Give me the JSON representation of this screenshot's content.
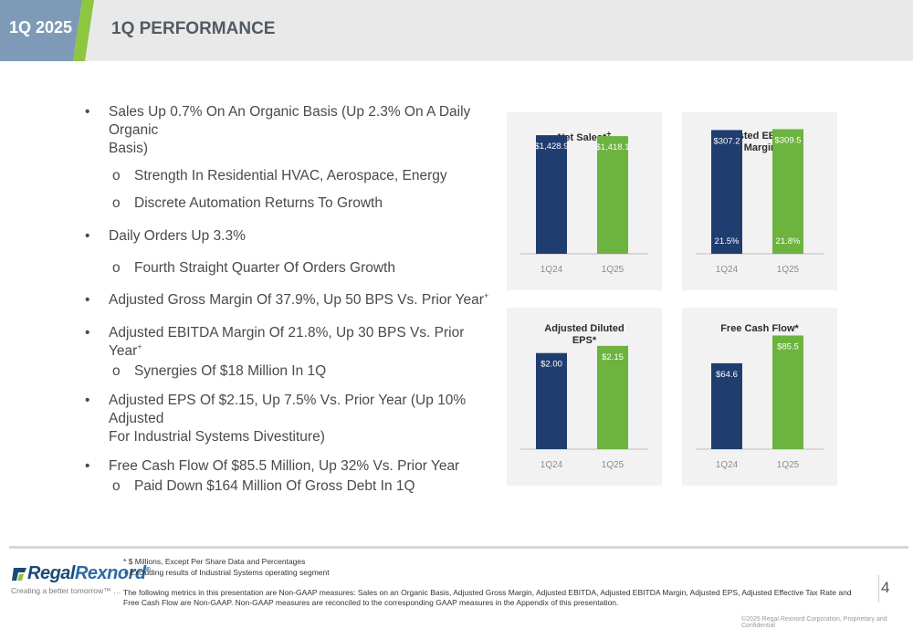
{
  "header": {
    "quarter_tab": "1Q 2025",
    "title": "1Q PERFORMANCE"
  },
  "bullets": [
    {
      "level": 1,
      "text": "Sales Up 0.7% On An Organic Basis (Up 2.3% On A Daily Organic",
      "text2": "Basis)"
    },
    {
      "level": 2,
      "text": "Strength In Residential HVAC, Aerospace, Energy"
    },
    {
      "level": 2,
      "text": "Discrete Automation Returns To Growth"
    },
    {
      "level": 1,
      "text": "Daily Orders Up 3.3%"
    },
    {
      "level": 2,
      "text": "Fourth Straight Quarter Of Orders Growth"
    },
    {
      "level": 1,
      "text": "Adjusted Gross Margin Of 37.9%, Up 50 BPS Vs. Prior Year",
      "sup": "+"
    },
    {
      "level": 1,
      "text": "Adjusted EBITDA Margin Of 21.8%, Up 30 BPS Vs. Prior Year",
      "sup": "+"
    },
    {
      "level": 2,
      "text": "Synergies Of $18 Million In 1Q"
    },
    {
      "level": 1,
      "text": "Adjusted EPS Of $2.15, Up 7.5% Vs. Prior Year (Up 10% Adjusted",
      "text2": "For Industrial Systems Divestiture)"
    },
    {
      "level": 1,
      "text": "Free Cash Flow Of $85.5 Million, Up 32% Vs. Prior Year"
    },
    {
      "level": 2,
      "text": "Paid Down $164 Million Of Gross Debt In 1Q"
    }
  ],
  "bullet_markers": {
    "level1": "•",
    "level2": "o"
  },
  "colors": {
    "q24_bar": "#1f3d6e",
    "q25_bar": "#6db33f",
    "panel_bg": "#f2f2f2",
    "header_bg": "#e9e9ea",
    "tab_bg": "#7f9ab6"
  },
  "chart_data": [
    {
      "type": "bar",
      "title": "Net Sales*",
      "title_sup": "+",
      "categories": [
        "1Q24",
        "1Q25"
      ],
      "values": [
        1428.9,
        1418.1
      ],
      "value_labels": [
        "$1,428.9",
        "$1,418.1"
      ],
      "ylim": [
        0,
        1650
      ],
      "label_position": "inside-top"
    },
    {
      "type": "bar",
      "title": "Adjusted EBITDA*",
      "title2": "& Margin*",
      "title2_sup": "+",
      "categories": [
        "1Q24",
        "1Q25"
      ],
      "values": [
        307.2,
        309.5
      ],
      "value_labels": [
        "$307.2",
        "$309.5"
      ],
      "margins": [
        "21.5%",
        "21.8%"
      ],
      "ylim": [
        0,
        340
      ],
      "label_position": "inside-top"
    },
    {
      "type": "bar",
      "title": "Adjusted Diluted",
      "title2": "EPS*",
      "categories": [
        "1Q24",
        "1Q25"
      ],
      "values": [
        2.0,
        2.15
      ],
      "value_labels": [
        "$2.00",
        "$2.15"
      ],
      "ylim": [
        0,
        2.85
      ],
      "label_position": "inside-top"
    },
    {
      "type": "bar",
      "title": "Free Cash Flow*",
      "categories": [
        "1Q24",
        "1Q25"
      ],
      "values": [
        64.6,
        85.5
      ],
      "value_labels": [
        "$64.6",
        "$85.5"
      ],
      "ylim": [
        0,
        103
      ],
      "label_position": "inside-top"
    }
  ],
  "footer": {
    "logo_regal": "Regal",
    "logo_rexnord": "Rexnord",
    "logo_tm": "®",
    "tagline": "Creating a better tomorrow™ …",
    "note1": "* $ Millions, Except Per Share Data and Percentages",
    "note2": "+ Excluding results of Industrial Systems operating segment",
    "paragraph": "The following metrics in this presentation are Non-GAAP measures: Sales on an Organic Basis, Adjusted Gross Margin, Adjusted EBITDA, Adjusted EBITDA Margin, Adjusted EPS, Adjusted Effective Tax Rate and Free Cash Flow are Non-GAAP. Non-GAAP measures are reconciled to the corresponding GAAP measures in the Appendix of this presentation.",
    "page_number": "4",
    "copyright": "©2025 Regal Rexnord Corporation, Proprietary and Confidential"
  }
}
